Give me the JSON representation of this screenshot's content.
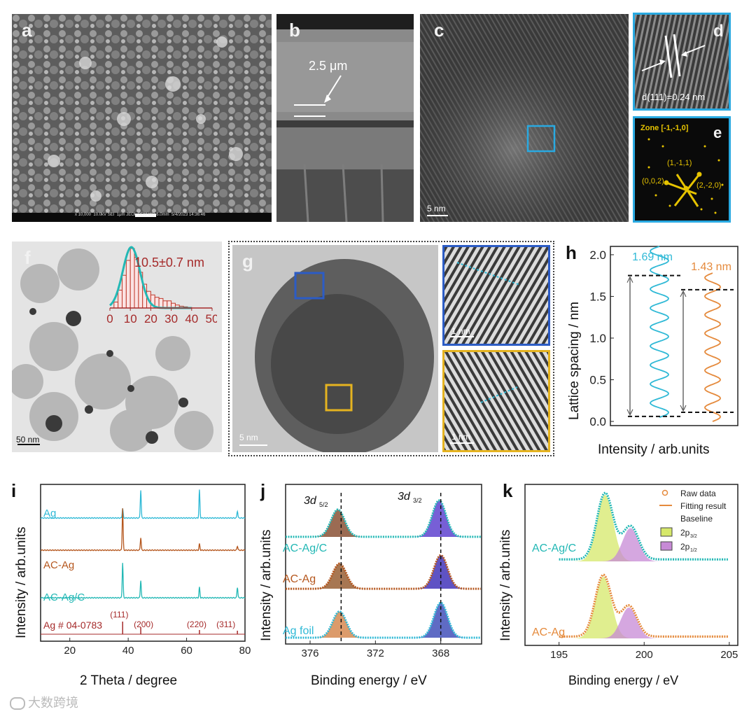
{
  "panels": {
    "a": {
      "label": "a",
      "footer": [
        "x 10,000",
        "10.0kV SEI",
        "1μm",
        "JEOL",
        "SEM",
        "WD 6.0mm",
        "5/4/2023",
        "14:36:46"
      ]
    },
    "b": {
      "label": "b",
      "thickness": "2.5 μm"
    },
    "c": {
      "label": "c",
      "scale": "5 nm"
    },
    "d": {
      "label": "d",
      "spacing": "d(111)=0.24 nm"
    },
    "e": {
      "label": "e",
      "zone": "Zone [-1,-1,0]",
      "spots": [
        "(1,-1,1)",
        "(0,0,2)",
        "(2,-2,0)"
      ]
    },
    "f": {
      "label": "f",
      "scale": "50 nm",
      "size": "10.5±0.7 nm"
    },
    "g": {
      "label": "g",
      "scale": "5 nm",
      "inset_scale": "1 nm"
    },
    "h": {
      "label": "h",
      "lines": [
        "1.69 nm",
        "1.43 nm"
      ]
    },
    "i": {
      "label": "i",
      "traces": [
        "Ag",
        "AC-Ag",
        "AC-Ag/C"
      ],
      "ref": "Ag # 04-0783",
      "peaks": [
        "(111)",
        "(200)",
        "(220)",
        "(311)"
      ]
    },
    "j": {
      "label": "j",
      "traces": [
        "AC-Ag/C",
        "AC-Ag",
        "Ag  foil"
      ],
      "peak_52": "3d",
      "peak_52_sub": "5/2",
      "peak_32": "3d",
      "peak_32_sub": "3/2"
    },
    "k": {
      "label": "k",
      "traces": [
        "AC-Ag/C",
        "AC-Ag"
      ],
      "legend": [
        "Raw data",
        "Fitting result",
        "Baseline",
        "2p",
        "2p"
      ],
      "legend_sub": [
        "3/2",
        "1/2"
      ]
    }
  },
  "colors": {
    "cyan": "#2fb9d6",
    "orange": "#e58a3c",
    "brown": "#b5571e",
    "teal": "#23b8b5",
    "red": "#a52a2a",
    "blue": "#2c5cc5",
    "yellow": "#e5b320",
    "frame": "#29a9e1"
  },
  "watermark": "大数跨境",
  "chart_data": [
    {
      "type": "histogram",
      "panel": "f",
      "xlabel": "",
      "x_ticks": [
        0,
        10,
        20,
        30,
        40,
        50
      ],
      "xlim": [
        0,
        50
      ],
      "bins": [
        [
          3,
          0.1
        ],
        [
          5,
          0.3
        ],
        [
          7,
          0.55
        ],
        [
          9,
          0.8
        ],
        [
          11,
          1.0
        ],
        [
          13,
          0.85
        ],
        [
          15,
          0.6
        ],
        [
          17,
          0.4
        ],
        [
          19,
          0.28
        ],
        [
          21,
          0.22
        ],
        [
          23,
          0.18
        ],
        [
          25,
          0.16
        ],
        [
          27,
          0.12
        ],
        [
          29,
          0.12
        ],
        [
          31,
          0.08
        ],
        [
          33,
          0.05
        ],
        [
          35,
          0.03
        ],
        [
          37,
          0.02
        ],
        [
          39,
          0.01
        ]
      ],
      "fit": "gaussian",
      "annotation": "10.5±0.7 nm"
    },
    {
      "type": "line",
      "panel": "h",
      "xlabel": "Intensity / arb.units",
      "ylabel": "Lattice spacing / nm",
      "y_ticks": [
        0.0,
        0.5,
        1.0,
        1.5,
        2.0
      ],
      "ylim": [
        -0.05,
        2.1
      ],
      "series": [
        {
          "name": "1.69 nm",
          "color": "#2fb9d6",
          "y_range": [
            0.05,
            2.1
          ],
          "periods": 9,
          "dashes": [
            0.06,
            1.75
          ]
        },
        {
          "name": "1.43 nm",
          "color": "#e58a3c",
          "y_range": [
            0.0,
            1.78
          ],
          "periods": 8,
          "dashes": [
            0.11,
            1.58
          ]
        }
      ]
    },
    {
      "type": "line",
      "panel": "i",
      "xlabel": "2 Theta / degree",
      "ylabel": "Intensity / arb.units",
      "x_ticks": [
        20,
        40,
        60,
        80
      ],
      "xlim": [
        10,
        80
      ],
      "peak_positions": [
        38.1,
        44.3,
        64.4,
        77.4
      ],
      "series": [
        {
          "name": "Ag",
          "heights": [
            0.35,
            1.0,
            1.0,
            0.25
          ]
        },
        {
          "name": "AC-Ag",
          "heights": [
            1.0,
            0.3,
            0.15,
            0.1
          ]
        },
        {
          "name": "AC-Ag/C",
          "heights": [
            1.0,
            0.5,
            0.3,
            0.3
          ]
        }
      ]
    },
    {
      "type": "line",
      "panel": "j",
      "xlabel": "Binding energy / eV",
      "ylabel": "Intensity / arb.units",
      "x_ticks": [
        376,
        372,
        368
      ],
      "xlim": [
        377.5,
        365.5
      ],
      "dashed_lines": [
        374.1,
        368.0
      ],
      "series": [
        {
          "name": "AC-Ag/C",
          "peaks": [
            374.3,
            368.1
          ]
        },
        {
          "name": "AC-Ag",
          "peaks": [
            374.2,
            368.0
          ]
        },
        {
          "name": "Ag  foil",
          "peaks": [
            374.2,
            368.0
          ]
        }
      ]
    },
    {
      "type": "line",
      "panel": "k",
      "xlabel": "Binding energy / eV",
      "ylabel": "Intensity / arb.units",
      "x_ticks": [
        195,
        200,
        205
      ],
      "xlim": [
        193,
        205.5
      ],
      "series": [
        {
          "name": "AC-Ag/C",
          "peaks": [
            [
              197.7,
              1.0
            ],
            [
              199.2,
              0.5
            ]
          ]
        },
        {
          "name": "AC-Ag",
          "peaks": [
            [
              197.6,
              1.0
            ],
            [
              199.1,
              0.5
            ]
          ]
        }
      ]
    }
  ]
}
